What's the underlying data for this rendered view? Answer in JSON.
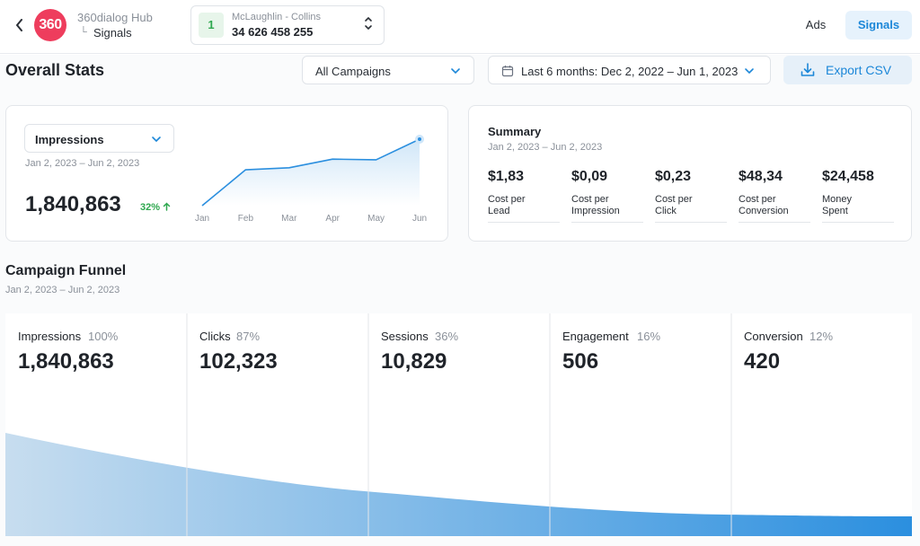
{
  "header": {
    "hub_name": "360dialog Hub",
    "hub_section": "Signals",
    "logo_text": "360",
    "back_icon": "chevron-left-icon",
    "account": {
      "badge": "1",
      "name": "McLaughlin - Collins",
      "phone": "34 626 458 255"
    },
    "nav": {
      "ads_label": "Ads",
      "signals_label": "Signals"
    }
  },
  "toolbar": {
    "page_title": "Overall Stats",
    "campaign_filter": "All Campaigns",
    "date_filter": "Last 6 months: Dec 2, 2022 – Jun 1, 2023",
    "export_label": "Export CSV"
  },
  "impressions_card": {
    "metric": "Impressions",
    "range": "Jan 2, 2023 – Jun 2, 2023",
    "total": "1,840,863",
    "change": "32%"
  },
  "chart_data": {
    "type": "area",
    "categories": [
      "Jan",
      "Feb",
      "Mar",
      "Apr",
      "May",
      "Jun"
    ],
    "values": [
      0,
      54,
      57,
      70,
      69,
      100
    ],
    "title": "",
    "xlabel": "",
    "ylabel": "",
    "ylim": [
      0,
      100
    ],
    "grid": false,
    "color": "#2b8fdf"
  },
  "summary": {
    "title": "Summary",
    "range": "Jan 2, 2023 – Jun 2, 2023",
    "items": [
      {
        "value": "$1,83",
        "label1": "Cost per",
        "label2": "Lead"
      },
      {
        "value": "$0,09",
        "label1": "Cost per",
        "label2": "Impression"
      },
      {
        "value": "$0,23",
        "label1": "Cost per",
        "label2": "Click"
      },
      {
        "value": "$48,34",
        "label1": "Cost per",
        "label2": "Conversion"
      },
      {
        "value": "$24,458",
        "label1": "Money",
        "label2": "Spent"
      }
    ]
  },
  "funnel": {
    "title": "Campaign Funnel",
    "range": "Jan 2, 2023 – Jun 2, 2023",
    "stages": [
      {
        "name": "Impressions",
        "percent": "100%",
        "value": "1,840,863"
      },
      {
        "name": "Clicks",
        "percent": "87%",
        "value": "102,323"
      },
      {
        "name": "Sessions",
        "percent": "36%",
        "value": "10,829"
      },
      {
        "name": "Engagement",
        "percent": "16%",
        "value": "506"
      },
      {
        "name": "Conversion",
        "percent": "12%",
        "value": "420"
      }
    ]
  }
}
